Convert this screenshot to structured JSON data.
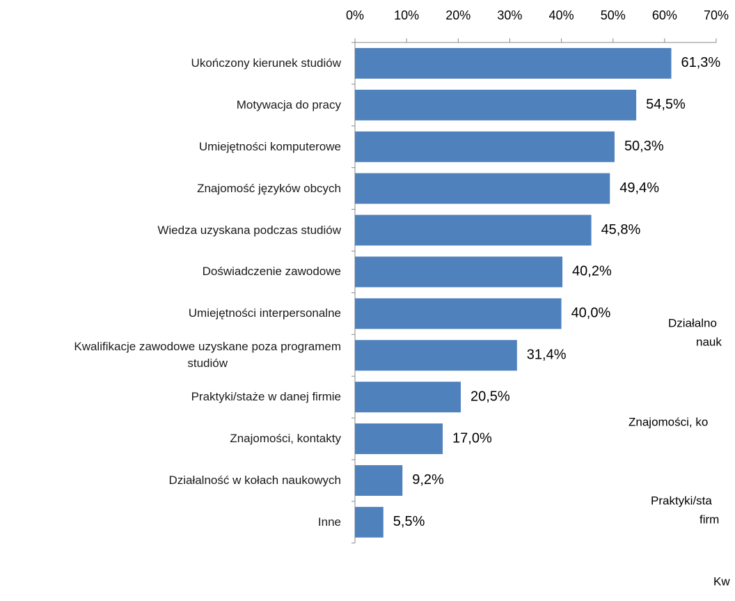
{
  "chart_data": {
    "type": "hbar",
    "categories": [
      "Ukończony kierunek studiów",
      "Motywacja do pracy",
      "Umiejętności komputerowe",
      "Znajomość języków obcych",
      "Wiedza uzyskana podczas studiów",
      "Doświadczenie zawodowe",
      "Umiejętności interpersonalne",
      "Kwalifikacje zawodowe uzyskane poza programem\nstudiów",
      "Praktyki/staże w danej firmie",
      "Znajomości, kontakty",
      "Działalność w kołach naukowych",
      "Inne"
    ],
    "values": [
      61.3,
      54.5,
      50.3,
      49.4,
      45.8,
      40.2,
      40.0,
      31.4,
      20.5,
      17.0,
      9.2,
      5.5
    ],
    "value_labels": [
      "61,3%",
      "54,5%",
      "50,3%",
      "49,4%",
      "45,8%",
      "40,2%",
      "40,0%",
      "31,4%",
      "20,5%",
      "17,0%",
      "9,2%",
      "5,5%"
    ],
    "color": "#4f81bd",
    "xlim": [
      0,
      70
    ],
    "xticks": [
      {
        "value": 0,
        "label": "0%"
      },
      {
        "value": 10,
        "label": "10%"
      },
      {
        "value": 20,
        "label": "20%"
      },
      {
        "value": 30,
        "label": "30%"
      },
      {
        "value": 40,
        "label": "40%"
      },
      {
        "value": 50,
        "label": "50%"
      },
      {
        "value": 60,
        "label": "60%"
      },
      {
        "value": 70,
        "label": "70%"
      }
    ],
    "annotations": [
      "Działalno",
      "nauk",
      "Znajomości, ko",
      "Praktyki/sta",
      "firm",
      "Kw"
    ]
  }
}
